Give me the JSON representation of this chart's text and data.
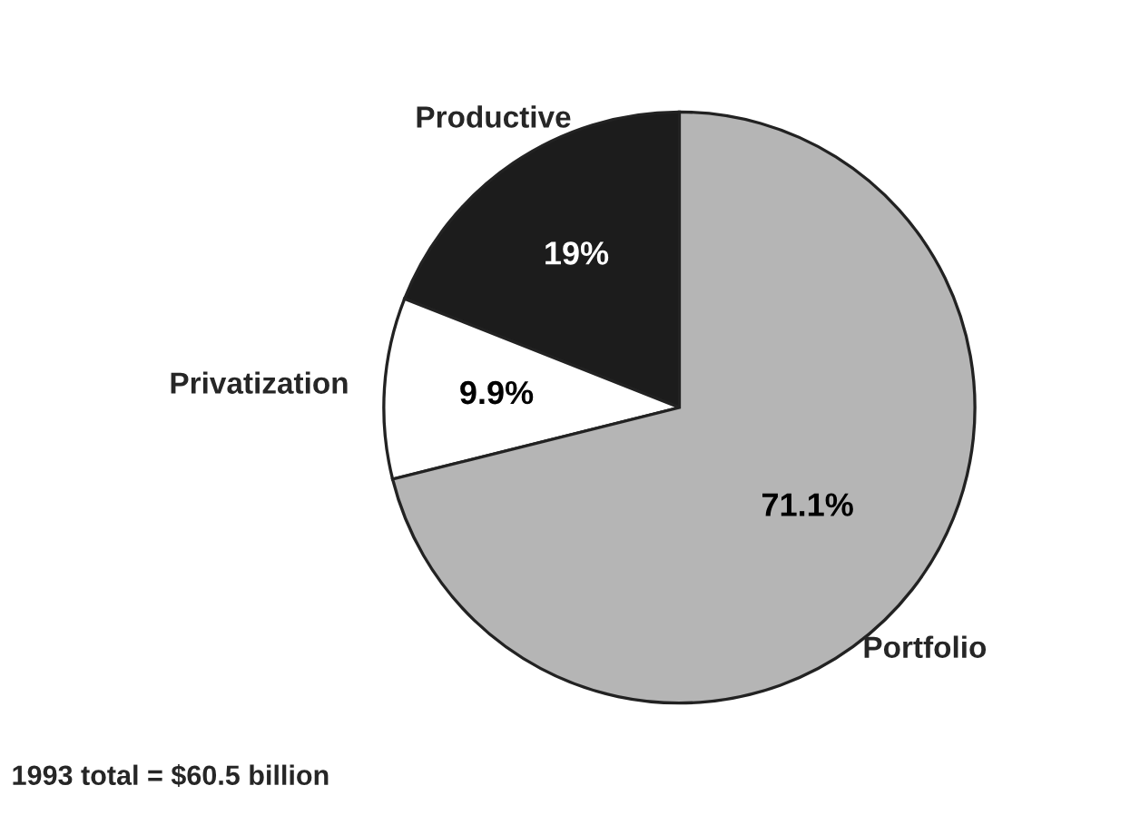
{
  "chart_data": {
    "type": "pie",
    "categories": [
      "Productive",
      "Privatization",
      "Portfolio"
    ],
    "values": [
      19,
      9.9,
      71.1
    ],
    "colors": [
      "#1c1c1c",
      "#ffffff",
      "#b5b5b5"
    ],
    "value_labels": [
      "19%",
      "9.9%",
      "71.1%"
    ],
    "annotations": [
      "1993 total = $60.5 billion"
    ]
  }
}
